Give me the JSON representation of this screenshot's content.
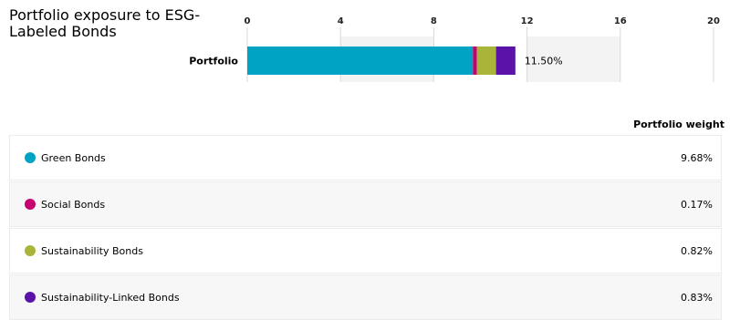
{
  "title": "Portfolio exposure to ESG-Labeled Bonds",
  "column_header": "Portfolio weight",
  "colors": {
    "green_bonds": "#00a3c4",
    "social_bonds": "#c6006f",
    "sustainability_bonds": "#a8b538",
    "sustainability_linked_bonds": "#5a12a8"
  },
  "chart_data": {
    "type": "bar",
    "orientation": "horizontal",
    "stacked": true,
    "categories": [
      "Portfolio"
    ],
    "xlim": [
      0,
      20
    ],
    "ticks": [
      "0",
      "4",
      "8",
      "12",
      "16",
      "20"
    ],
    "total_label": "11.50%",
    "series": [
      {
        "name": "Green Bonds",
        "values": [
          9.68
        ],
        "color": "#00a3c4"
      },
      {
        "name": "Social Bonds",
        "values": [
          0.17
        ],
        "color": "#c6006f"
      },
      {
        "name": "Sustainability Bonds",
        "values": [
          0.82
        ],
        "color": "#a8b538"
      },
      {
        "name": "Sustainability-Linked Bonds",
        "values": [
          0.83
        ],
        "color": "#5a12a8"
      }
    ]
  },
  "legend": [
    {
      "label": "Green Bonds",
      "weight": "9.68%",
      "color": "#00a3c4"
    },
    {
      "label": "Social Bonds",
      "weight": "0.17%",
      "color": "#c6006f"
    },
    {
      "label": "Sustainability Bonds",
      "weight": "0.82%",
      "color": "#a8b538"
    },
    {
      "label": "Sustainability-Linked Bonds",
      "weight": "0.83%",
      "color": "#5a12a8"
    }
  ]
}
